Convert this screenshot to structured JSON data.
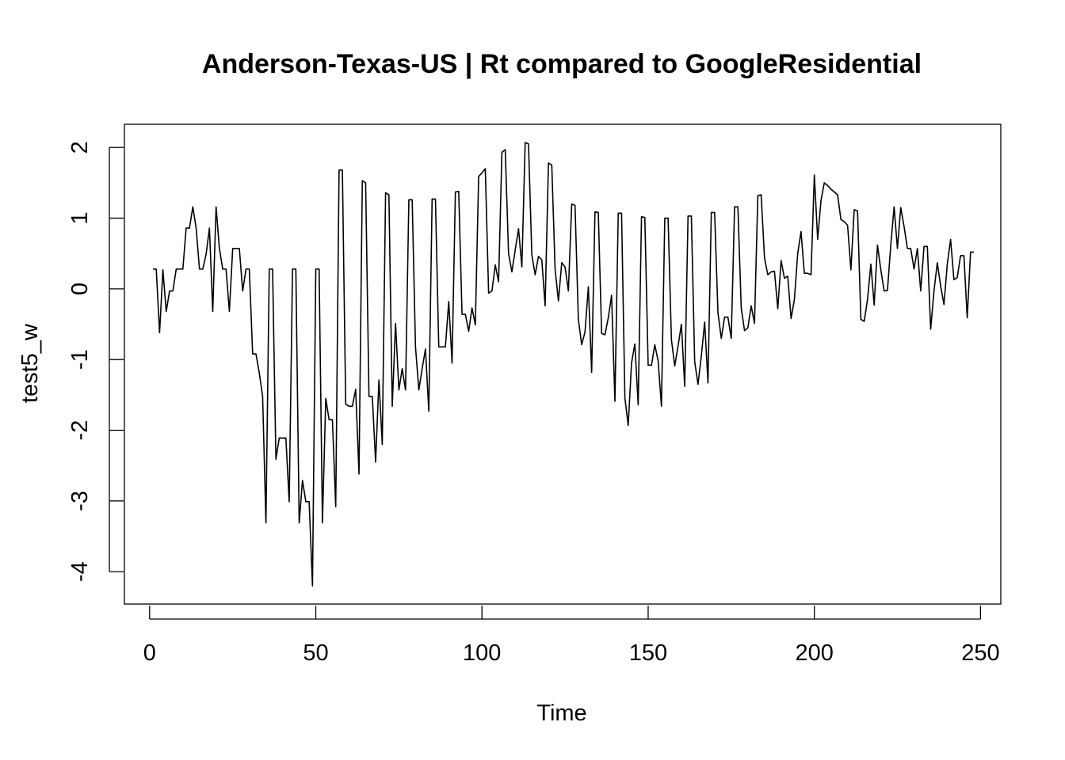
{
  "chart_data": {
    "type": "line",
    "title": "Anderson-Texas-US | Rt compared to GoogleResidential",
    "xlabel": "Time",
    "ylabel": "test5_w",
    "xlim": [
      1,
      248
    ],
    "ylim": [
      -4.2,
      2.07
    ],
    "x_ticks": [
      0,
      50,
      100,
      150,
      200,
      250
    ],
    "y_ticks": [
      -4,
      -3,
      -2,
      -1,
      0,
      1,
      2
    ],
    "x_tick_labels": [
      "0",
      "50",
      "100",
      "150",
      "200",
      "250"
    ],
    "y_tick_labels": [
      "-4",
      "-3",
      "-2",
      "-1",
      "0",
      "1",
      "2"
    ],
    "grid": false,
    "line_color": "#000000",
    "x": [
      1,
      2,
      3,
      4,
      5,
      6,
      7,
      8,
      9,
      10,
      11,
      12,
      13,
      14,
      15,
      16,
      17,
      18,
      19,
      20,
      21,
      22,
      23,
      24,
      25,
      26,
      27,
      28,
      29,
      30,
      31,
      32,
      33,
      34,
      35,
      36,
      37,
      38,
      39,
      40,
      41,
      42,
      43,
      44,
      45,
      46,
      47,
      48,
      49,
      50,
      51,
      52,
      53,
      54,
      55,
      56,
      57,
      58,
      59,
      60,
      61,
      62,
      63,
      64,
      65,
      66,
      67,
      68,
      69,
      70,
      71,
      72,
      73,
      74,
      75,
      76,
      77,
      78,
      79,
      80,
      81,
      82,
      83,
      84,
      85,
      86,
      87,
      88,
      89,
      90,
      91,
      92,
      93,
      94,
      95,
      96,
      97,
      98,
      99,
      100,
      101,
      102,
      103,
      104,
      105,
      106,
      107,
      108,
      109,
      110,
      111,
      112,
      113,
      114,
      115,
      116,
      117,
      118,
      119,
      120,
      121,
      122,
      123,
      124,
      125,
      126,
      127,
      128,
      129,
      130,
      131,
      132,
      133,
      134,
      135,
      136,
      137,
      138,
      139,
      140,
      141,
      142,
      143,
      144,
      145,
      146,
      147,
      148,
      149,
      150,
      151,
      152,
      153,
      154,
      155,
      156,
      157,
      158,
      159,
      160,
      161,
      162,
      163,
      164,
      165,
      166,
      167,
      168,
      169,
      170,
      171,
      172,
      173,
      174,
      175,
      176,
      177,
      178,
      179,
      180,
      181,
      182,
      183,
      184,
      185,
      186,
      187,
      188,
      189,
      190,
      191,
      192,
      193,
      194,
      195,
      196,
      197,
      198,
      199,
      200,
      201,
      202,
      203,
      204,
      205,
      206,
      207,
      208,
      209,
      210,
      211,
      212,
      213,
      214,
      215,
      216,
      217,
      218,
      219,
      220,
      221,
      222,
      223,
      224,
      225,
      226,
      227,
      228,
      229,
      230,
      231,
      232,
      233,
      234,
      235,
      236,
      237,
      238,
      239,
      240,
      241,
      242,
      243,
      244,
      245,
      246,
      247,
      248
    ],
    "values": [
      0.28,
      0.28,
      -0.62,
      0.27,
      -0.32,
      -0.03,
      -0.03,
      0.28,
      0.28,
      0.28,
      0.86,
      0.86,
      1.16,
      0.86,
      0.28,
      0.28,
      0.49,
      0.86,
      -0.32,
      1.16,
      0.57,
      0.28,
      0.28,
      -0.32,
      0.57,
      0.57,
      0.57,
      -0.03,
      0.28,
      0.28,
      -0.92,
      -0.92,
      -1.19,
      -1.52,
      -3.31,
      0.28,
      0.28,
      -2.41,
      -2.11,
      -2.11,
      -2.11,
      -3.01,
      0.28,
      0.28,
      -3.31,
      -2.71,
      -3.01,
      -3.01,
      -4.2,
      0.28,
      0.28,
      -3.31,
      -1.55,
      -1.85,
      -1.85,
      -3.08,
      1.68,
      1.68,
      -1.63,
      -1.66,
      -1.66,
      -1.42,
      -2.62,
      1.53,
      1.5,
      -1.52,
      -1.52,
      -2.45,
      -1.29,
      -2.2,
      1.36,
      1.33,
      -1.66,
      -0.49,
      -1.43,
      -1.13,
      -1.43,
      1.26,
      1.26,
      -0.82,
      -1.43,
      -1.13,
      -0.85,
      -1.73,
      1.27,
      1.27,
      -0.82,
      -0.82,
      -0.82,
      -0.18,
      -1.05,
      1.37,
      1.38,
      -0.36,
      -0.36,
      -0.6,
      -0.27,
      -0.51,
      1.59,
      1.64,
      1.7,
      -0.06,
      -0.03,
      0.34,
      0.1,
      1.93,
      1.97,
      0.5,
      0.24,
      0.55,
      0.85,
      0.31,
      2.07,
      2.05,
      0.48,
      0.2,
      0.46,
      0.41,
      -0.24,
      1.78,
      1.75,
      0.28,
      -0.17,
      0.37,
      0.31,
      -0.03,
      1.2,
      1.18,
      -0.43,
      -0.79,
      -0.61,
      0.03,
      -1.18,
      1.09,
      1.08,
      -0.63,
      -0.65,
      -0.41,
      -0.09,
      -1.59,
      1.07,
      1.07,
      -1.54,
      -1.93,
      -1.05,
      -0.78,
      -1.64,
      1.02,
      1.01,
      -1.08,
      -1.08,
      -0.79,
      -1.02,
      -1.66,
      1.0,
      1.0,
      -0.72,
      -1.09,
      -0.81,
      -0.5,
      -1.38,
      1.03,
      1.03,
      -1.03,
      -1.35,
      -0.95,
      -0.47,
      -1.33,
      1.08,
      1.08,
      -0.34,
      -0.7,
      -0.4,
      -0.4,
      -0.7,
      1.16,
      1.16,
      -0.27,
      -0.59,
      -0.55,
      -0.24,
      -0.49,
      1.32,
      1.33,
      0.44,
      0.2,
      0.24,
      0.25,
      -0.28,
      0.4,
      0.15,
      0.18,
      -0.42,
      -0.15,
      0.5,
      0.81,
      0.22,
      0.22,
      0.2,
      1.61,
      0.7,
      1.25,
      1.5,
      1.46,
      1.41,
      1.37,
      1.33,
      0.98,
      0.95,
      0.9,
      0.27,
      1.12,
      1.1,
      -0.43,
      -0.46,
      -0.15,
      0.35,
      -0.23,
      0.62,
      0.27,
      -0.03,
      -0.02,
      0.62,
      1.16,
      0.57,
      1.15,
      0.88,
      0.57,
      0.57,
      0.28,
      0.57,
      -0.03,
      0.6,
      0.6,
      -0.57,
      -0.03,
      0.37,
      0.04,
      -0.22,
      0.35,
      0.7,
      0.13,
      0.16,
      0.47,
      0.47,
      -0.41,
      0.52,
      0.52
    ]
  }
}
